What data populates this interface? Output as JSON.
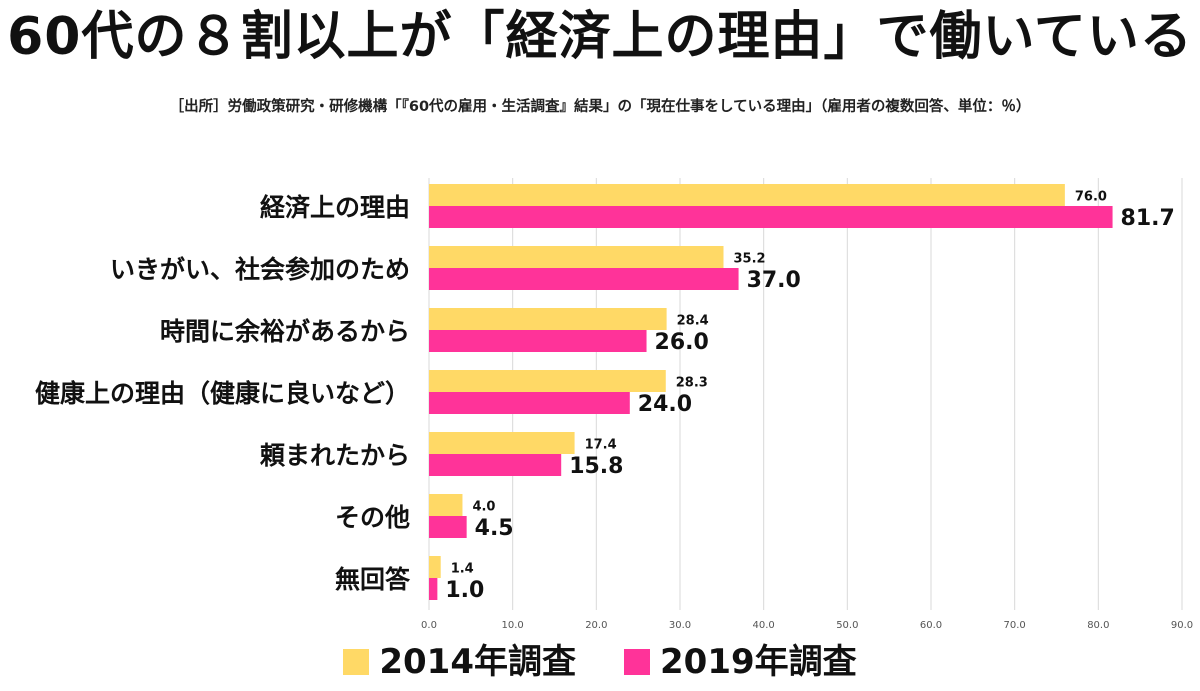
{
  "title": "60代の８割以上が「経済上の理由」で働いている",
  "source": "［出所］労働政策研究・研修機構「『60代の雇用・生活調査』結果」の「現在仕事をしている理由」（雇用者の複数回答、単位：％）",
  "colors": {
    "series_2014": "#FFD966",
    "series_2019": "#FF3399",
    "grid": "#D9D9D9"
  },
  "chart_data": {
    "type": "bar",
    "orientation": "horizontal",
    "title": "60代の８割以上が「経済上の理由」で働いている",
    "categories": [
      "経済上の理由",
      "いきがい、社会参加のため",
      "時間に余裕があるから",
      "健康上の理由（健康に良いなど）",
      "頼まれたから",
      "その他",
      "無回答"
    ],
    "series": [
      {
        "name": "2014年調査",
        "values": [
          76.0,
          35.2,
          28.4,
          28.3,
          17.4,
          4.0,
          1.4
        ],
        "labels": [
          "76.0",
          "35.2",
          "28.4",
          "28.3",
          "17.4",
          "4.0",
          "1.4"
        ]
      },
      {
        "name": "2019年調査",
        "values": [
          81.7,
          37.0,
          26.0,
          24.0,
          15.8,
          4.5,
          1.0
        ],
        "labels": [
          "81.7",
          "37.0",
          "26.0",
          "24.0",
          "15.8",
          "4.5",
          "1.0"
        ]
      }
    ],
    "xlim": [
      0,
      90
    ],
    "ticks": [
      "0.0",
      "10.0",
      "20.0",
      "30.0",
      "40.0",
      "50.0",
      "60.0",
      "70.0",
      "80.0",
      "90.0"
    ],
    "grid": true,
    "legend_position": "bottom"
  }
}
